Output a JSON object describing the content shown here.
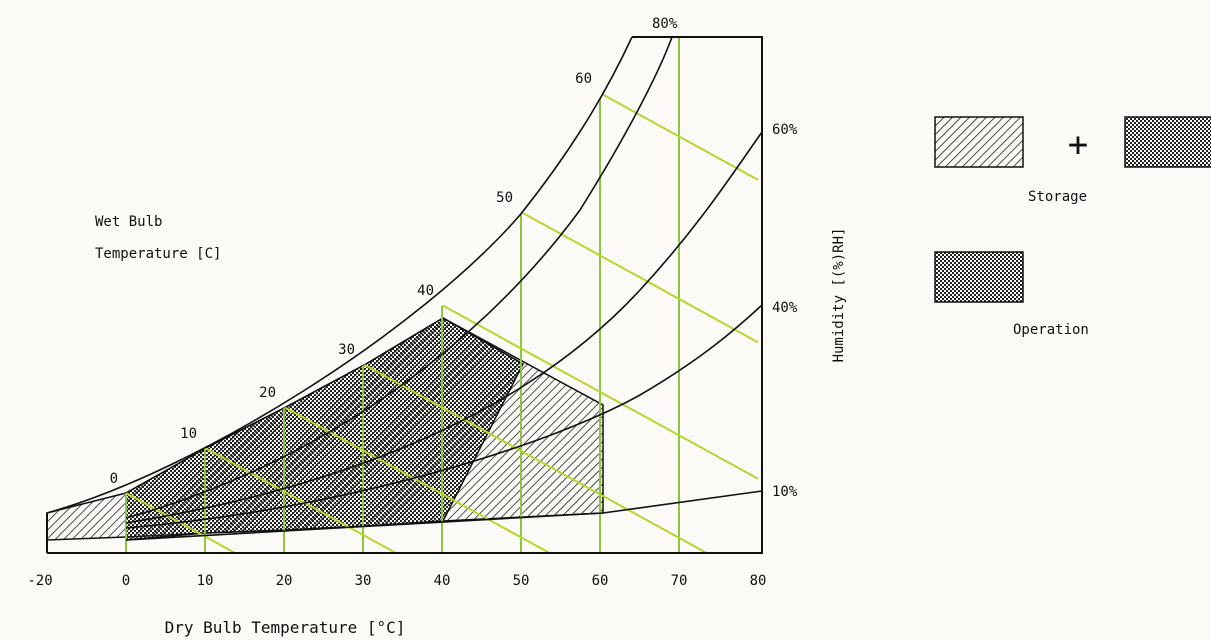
{
  "chart_data": {
    "type": "line",
    "title": "",
    "xlabel": "Dry Bulb Temperature [°C]",
    "ylabel": "Humidity [(%)RH]",
    "xlim": [
      -20,
      80
    ],
    "x_ticks": [
      "-20",
      "0",
      "10",
      "20",
      "30",
      "40",
      "50",
      "60",
      "70",
      "80"
    ],
    "grid": false,
    "wet_bulb_label": [
      "Wet Bulb",
      "Temperature [C]"
    ],
    "wet_bulb_lines": [
      {
        "label": "0",
        "dry_bulb_start": 0,
        "dry_bulb_end": 18
      },
      {
        "label": "10",
        "dry_bulb_start": 10,
        "dry_bulb_end": 35
      },
      {
        "label": "20",
        "dry_bulb_start": 20,
        "dry_bulb_end": 56
      },
      {
        "label": "30",
        "dry_bulb_start": 30,
        "dry_bulb_end": 80
      },
      {
        "label": "40",
        "dry_bulb_start": 40,
        "dry_bulb_end": 80
      },
      {
        "label": "50",
        "dry_bulb_start": 50,
        "dry_bulb_end": 80
      },
      {
        "label": "60",
        "dry_bulb_start": 60,
        "dry_bulb_end": 80
      }
    ],
    "humidity_curves": [
      {
        "label": "10%",
        "rh": 10
      },
      {
        "label": "40%",
        "rh": 40
      },
      {
        "label": "60%",
        "rh": 60
      },
      {
        "label": "80%",
        "rh": 80
      }
    ],
    "legend": [
      {
        "label": "Storage",
        "patterns": [
          "diagonal-hatch",
          "crosshatch"
        ]
      },
      {
        "label": "Operation",
        "patterns": [
          "crosshatch"
        ]
      }
    ],
    "legend_plus": "+",
    "regions": [
      {
        "name": "Storage",
        "pattern": "diagonal-hatch",
        "dry_bulb_range": [
          -20,
          60
        ]
      },
      {
        "name": "Operation",
        "pattern": "crosshatch",
        "dry_bulb_range": [
          0,
          40
        ]
      }
    ],
    "colors": {
      "verticals": "#8cc63f",
      "wet_bulb": "#b5d62c",
      "curves": "#111111",
      "background": "#fbfaf7"
    }
  }
}
